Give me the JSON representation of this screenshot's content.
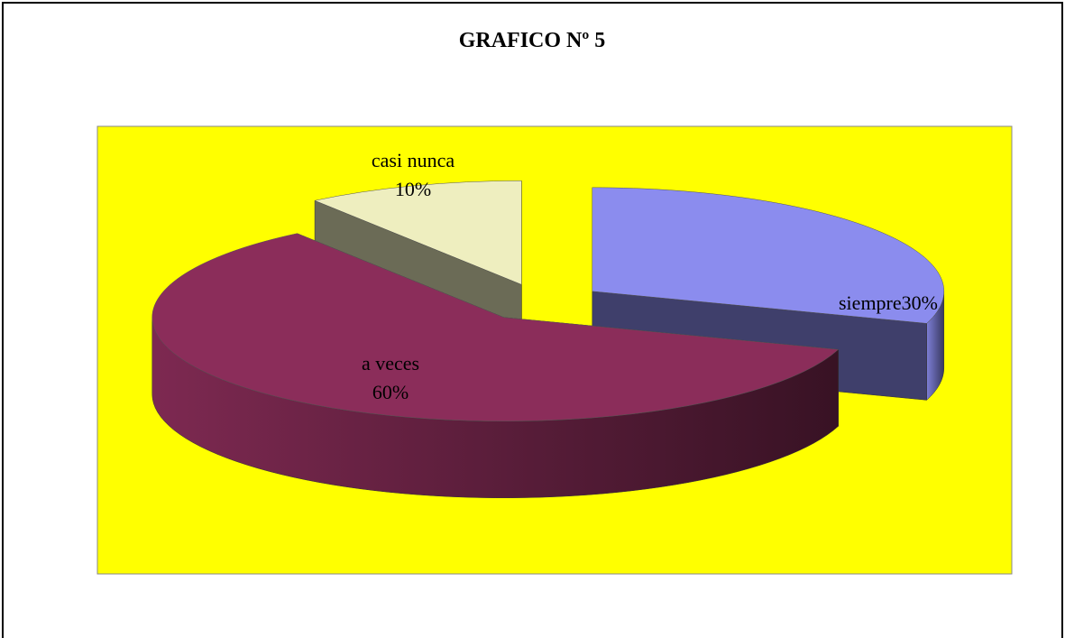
{
  "chart_data": {
    "type": "pie",
    "title": "GRAFICO Nº 5",
    "categories": [
      "siempre",
      "a veces",
      "casi nunca"
    ],
    "values": [
      30,
      60,
      10
    ],
    "value_labels": [
      "30%",
      "60%",
      "10%"
    ],
    "colors": [
      "#8b8cee",
      "#8b2d5a",
      "#eeeebf"
    ],
    "background": "#ffff00"
  }
}
